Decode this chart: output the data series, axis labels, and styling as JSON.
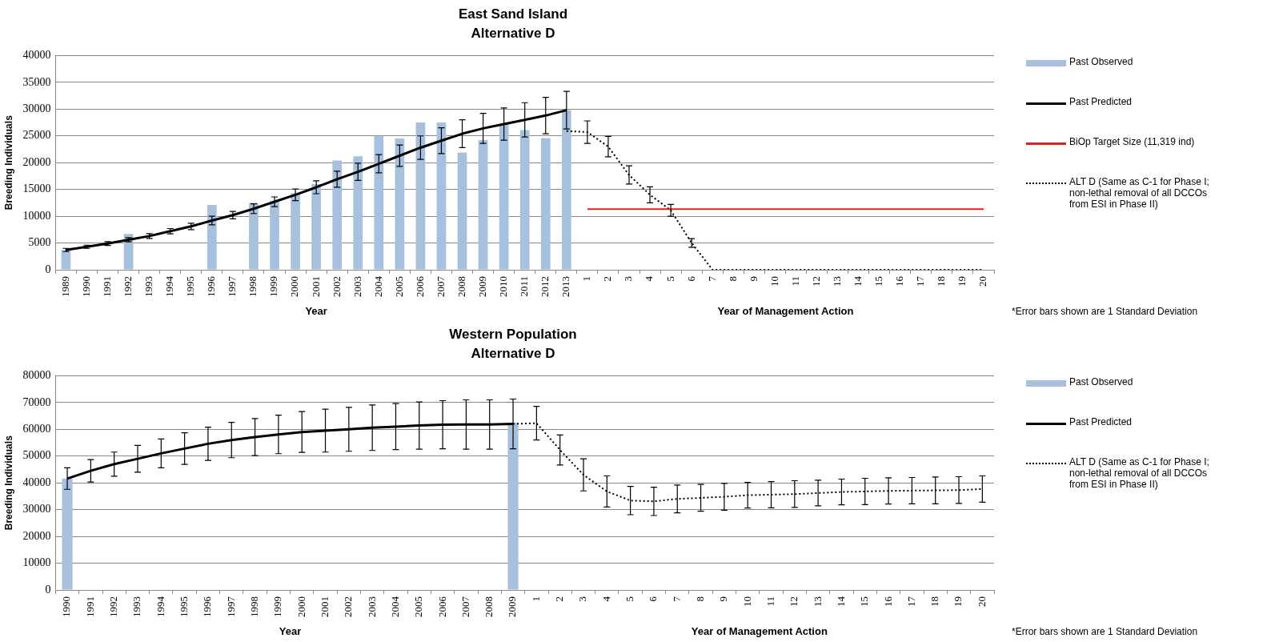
{
  "chart_data": [
    {
      "type": "bar",
      "title": "East Sand Island",
      "subtitle": "Alternative D",
      "xlabel": "Year",
      "ylabel": "Breeding Individuals",
      "categories": [
        "1989",
        "1990",
        "1991",
        "1992",
        "1993",
        "1994",
        "1995",
        "1996",
        "1997",
        "1998",
        "1999",
        "2000",
        "2001",
        "2002",
        "2003",
        "2004",
        "2005",
        "2006",
        "2007",
        "2008",
        "2009",
        "2010",
        "2011",
        "2012",
        "2013",
        "1",
        "2",
        "3",
        "4",
        "5",
        "6",
        "7",
        "8",
        "9",
        "10",
        "11",
        "12",
        "13",
        "14",
        "15",
        "16",
        "17",
        "18",
        "19",
        "20"
      ],
      "series": [
        {
          "name": "Past Observed",
          "color": "#a7c0de",
          "values": [
            3700,
            null,
            null,
            6700,
            null,
            null,
            null,
            12100,
            null,
            12500,
            12900,
            14300,
            16000,
            20400,
            21200,
            25000,
            24500,
            27500,
            27500,
            21900,
            24200,
            27200,
            26100,
            24600,
            29800,
            null,
            null,
            null,
            null,
            null,
            null,
            null,
            null,
            null,
            null,
            null,
            null,
            null,
            null,
            null,
            null,
            null,
            null,
            null,
            null
          ]
        },
        {
          "name": "Past Predicted",
          "type": "line",
          "color": "#000000",
          "line_style": "solid",
          "values": [
            3700,
            4300,
            4900,
            5600,
            6300,
            7200,
            8100,
            9200,
            10200,
            11400,
            12700,
            14000,
            15400,
            16900,
            18300,
            19800,
            21300,
            22800,
            24100,
            25400,
            26400,
            27200,
            28000,
            28800,
            29800,
            null,
            null,
            null,
            null,
            null,
            null,
            null,
            null,
            null,
            null,
            null,
            null,
            null,
            null,
            null,
            null,
            null,
            null,
            null,
            null
          ],
          "errors": [
            300,
            300,
            350,
            400,
            450,
            500,
            600,
            800,
            700,
            900,
            900,
            1100,
            1200,
            1500,
            1600,
            1700,
            2000,
            2200,
            2400,
            2600,
            2800,
            3000,
            3200,
            3400,
            3500,
            null,
            null,
            null,
            null,
            null,
            null,
            null,
            null,
            null,
            null,
            null,
            null,
            null,
            null,
            null,
            null,
            null,
            null,
            null,
            null
          ]
        },
        {
          "name": "BiOp Target Size (11,319 ind)",
          "type": "line",
          "color": "#e0201b",
          "line_style": "solid",
          "values": [
            null,
            null,
            null,
            null,
            null,
            null,
            null,
            null,
            null,
            null,
            null,
            null,
            null,
            null,
            null,
            null,
            null,
            null,
            null,
            null,
            null,
            null,
            null,
            null,
            null,
            11319,
            11319,
            11319,
            11319,
            11319,
            11319,
            11319,
            11319,
            11319,
            11319,
            11319,
            11319,
            11319,
            11319,
            11319,
            11319,
            11319,
            11319,
            11319,
            11319
          ]
        },
        {
          "name": "ALT D (Same as C-1 for Phase I; non-lethal removal of all DCCOs from ESI in Phase II)",
          "type": "line",
          "color": "#000000",
          "line_style": "dotted",
          "values": [
            null,
            null,
            null,
            null,
            null,
            null,
            null,
            null,
            null,
            null,
            null,
            null,
            null,
            null,
            null,
            null,
            null,
            null,
            null,
            null,
            null,
            null,
            null,
            null,
            25900,
            25700,
            23000,
            17700,
            14000,
            11100,
            5000,
            0,
            0,
            0,
            0,
            0,
            0,
            0,
            0,
            0,
            0,
            0,
            0,
            0,
            0
          ],
          "errors": [
            null,
            null,
            null,
            null,
            null,
            null,
            null,
            null,
            null,
            null,
            null,
            null,
            null,
            null,
            null,
            null,
            null,
            null,
            null,
            null,
            null,
            null,
            null,
            null,
            null,
            2100,
            1900,
            1700,
            1500,
            1100,
            800,
            null,
            null,
            null,
            null,
            null,
            null,
            null,
            null,
            null,
            null,
            null,
            null,
            null,
            null
          ]
        }
      ],
      "ylim": [
        0,
        40000
      ],
      "yticks": [
        0,
        5000,
        10000,
        15000,
        20000,
        25000,
        30000,
        35000,
        40000
      ],
      "grid": "y",
      "legend": "right",
      "marker": "none",
      "annotations": [
        "Year of Management Action",
        "*Error bars shown are 1 Standard Deviation"
      ]
    },
    {
      "type": "bar",
      "title": "Western Population",
      "subtitle": "Alternative D",
      "xlabel": "Year",
      "ylabel": "Breeding Individuals",
      "categories": [
        "1990",
        "1991",
        "1992",
        "1993",
        "1994",
        "1995",
        "1996",
        "1997",
        "1998",
        "1999",
        "2000",
        "2001",
        "2002",
        "2003",
        "2004",
        "2005",
        "2006",
        "2007",
        "2008",
        "2009",
        "1",
        "2",
        "3",
        "4",
        "5",
        "6",
        "7",
        "8",
        "9",
        "10",
        "11",
        "12",
        "13",
        "14",
        "15",
        "16",
        "17",
        "18",
        "19",
        "20"
      ],
      "series": [
        {
          "name": "Past Observed",
          "color": "#a7c0de",
          "values": [
            41600,
            null,
            null,
            null,
            null,
            null,
            null,
            null,
            null,
            null,
            null,
            null,
            null,
            null,
            null,
            null,
            null,
            null,
            null,
            62500,
            null,
            null,
            null,
            null,
            null,
            null,
            null,
            null,
            null,
            null,
            null,
            null,
            null,
            null,
            null,
            null,
            null,
            null,
            null,
            null
          ]
        },
        {
          "name": "Past Predicted",
          "type": "line",
          "color": "#000000",
          "line_style": "solid",
          "values": [
            41600,
            44500,
            47000,
            49000,
            51000,
            52800,
            54600,
            56000,
            57100,
            58100,
            59000,
            59500,
            60000,
            60600,
            61000,
            61400,
            61700,
            61800,
            61800,
            62000,
            null,
            null,
            null,
            null,
            null,
            null,
            null,
            null,
            null,
            null,
            null,
            null,
            null,
            null,
            null,
            null,
            null,
            null,
            null,
            null
          ],
          "errors": [
            4000,
            4200,
            4500,
            5000,
            5400,
            5900,
            6200,
            6600,
            6900,
            7200,
            7600,
            8000,
            8200,
            8500,
            8600,
            8800,
            9000,
            9200,
            9200,
            9300,
            null,
            null,
            null,
            null,
            null,
            null,
            null,
            null,
            null,
            null,
            null,
            null,
            null,
            null,
            null,
            null,
            null,
            null,
            null,
            null
          ]
        },
        {
          "name": "ALT D (Same as C-1 for Phase I; non-lethal removal of all DCCOs from ESI in Phase II)",
          "type": "line",
          "color": "#000000",
          "line_style": "dotted",
          "values": [
            null,
            null,
            null,
            null,
            null,
            null,
            null,
            null,
            null,
            null,
            null,
            null,
            null,
            null,
            null,
            null,
            null,
            null,
            null,
            62000,
            62300,
            52300,
            43000,
            36800,
            33400,
            33100,
            34000,
            34400,
            34800,
            35400,
            35600,
            35800,
            36200,
            36600,
            36800,
            37000,
            37100,
            37200,
            37300,
            37700
          ],
          "errors": [
            null,
            null,
            null,
            null,
            null,
            null,
            null,
            null,
            null,
            null,
            null,
            null,
            null,
            null,
            null,
            null,
            null,
            null,
            null,
            null,
            6300,
            5600,
            6000,
            5800,
            5300,
            5300,
            5200,
            5000,
            5000,
            4800,
            4900,
            5000,
            4800,
            4800,
            4900,
            4900,
            4900,
            5000,
            5000,
            4900
          ]
        }
      ],
      "ylim": [
        0,
        80000
      ],
      "yticks": [
        0,
        10000,
        20000,
        30000,
        40000,
        50000,
        60000,
        70000,
        80000
      ],
      "grid": "y",
      "legend": "right",
      "marker": "none",
      "annotations": [
        "Year of Management Action",
        "*Error bars shown are 1 Standard Deviation"
      ]
    }
  ]
}
